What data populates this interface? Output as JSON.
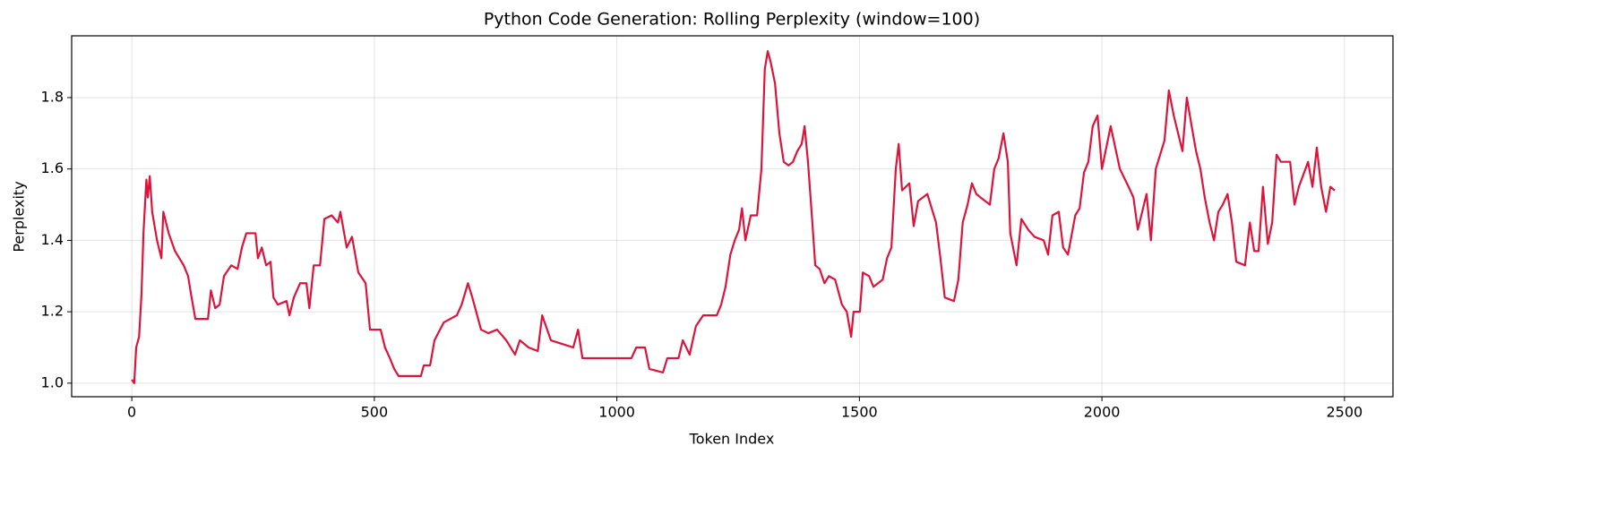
{
  "chart_data": {
    "type": "line",
    "title": "Python Code Generation: Rolling Perplexity (window=100)",
    "x_label": "Token Index",
    "y_label": "Perplexity",
    "color": "#dc143c",
    "grid": true,
    "xlim": [
      -124,
      2600
    ],
    "ylim": [
      0.962,
      1.973
    ],
    "xticks": [
      0,
      500,
      1000,
      1500,
      2000,
      2500
    ],
    "yticks": [
      {
        "value": 1,
        "label": "1.0"
      },
      1.2,
      1.4,
      1.6,
      1.8
    ],
    "x": [
      0,
      5,
      9,
      15,
      20,
      24,
      30,
      33,
      37,
      42,
      52,
      61,
      65,
      76,
      89,
      107,
      116,
      122,
      131,
      144,
      157,
      163,
      172,
      181,
      190,
      205,
      218,
      227,
      236,
      255,
      260,
      268,
      277,
      286,
      292,
      301,
      319,
      325,
      334,
      347,
      360,
      366,
      375,
      388,
      397,
      412,
      425,
      430,
      443,
      454,
      467,
      482,
      491,
      513,
      522,
      532,
      541,
      550,
      578,
      596,
      602,
      615,
      624,
      643,
      670,
      680,
      693,
      702,
      720,
      735,
      753,
      772,
      790,
      800,
      818,
      837,
      846,
      864,
      910,
      920,
      929,
      1030,
      1040,
      1058,
      1067,
      1095,
      1104,
      1127,
      1136,
      1150,
      1163,
      1178,
      1206,
      1215,
      1224,
      1234,
      1243,
      1252,
      1258,
      1265,
      1276,
      1289,
      1298,
      1305,
      1311,
      1317,
      1326,
      1335,
      1344,
      1354,
      1363,
      1372,
      1381,
      1387,
      1394,
      1403,
      1409,
      1418,
      1428,
      1437,
      1450,
      1464,
      1474,
      1483,
      1488,
      1501,
      1507,
      1520,
      1529,
      1548,
      1557,
      1566,
      1575,
      1581,
      1588,
      1603,
      1612,
      1621,
      1640,
      1649,
      1658,
      1667,
      1676,
      1695,
      1704,
      1713,
      1723,
      1732,
      1741,
      1750,
      1769,
      1778,
      1787,
      1797,
      1806,
      1811,
      1824,
      1834,
      1848,
      1861,
      1880,
      1889,
      1898,
      1911,
      1920,
      1930,
      1945,
      1954,
      1963,
      1972,
      1981,
      1991,
      2000,
      2018,
      2037,
      2055,
      2065,
      2074,
      2092,
      2101,
      2111,
      2129,
      2138,
      2148,
      2157,
      2166,
      2175,
      2185,
      2194,
      2203,
      2212,
      2222,
      2231,
      2240,
      2249,
      2259,
      2268,
      2277,
      2295,
      2305,
      2314,
      2323,
      2332,
      2342,
      2351,
      2360,
      2369,
      2388,
      2397,
      2406,
      2425,
      2434,
      2443,
      2452,
      2462,
      2471,
      2480
    ],
    "values": [
      1.01,
      1.0,
      1.1,
      1.13,
      1.25,
      1.42,
      1.57,
      1.52,
      1.58,
      1.48,
      1.4,
      1.35,
      1.48,
      1.42,
      1.37,
      1.33,
      1.3,
      1.25,
      1.18,
      1.18,
      1.18,
      1.26,
      1.21,
      1.22,
      1.3,
      1.33,
      1.32,
      1.38,
      1.42,
      1.42,
      1.35,
      1.38,
      1.33,
      1.34,
      1.24,
      1.22,
      1.23,
      1.19,
      1.24,
      1.28,
      1.28,
      1.21,
      1.33,
      1.33,
      1.46,
      1.47,
      1.45,
      1.48,
      1.38,
      1.41,
      1.31,
      1.28,
      1.15,
      1.15,
      1.1,
      1.07,
      1.04,
      1.02,
      1.02,
      1.02,
      1.05,
      1.05,
      1.12,
      1.17,
      1.19,
      1.22,
      1.28,
      1.24,
      1.15,
      1.14,
      1.15,
      1.12,
      1.08,
      1.12,
      1.1,
      1.09,
      1.19,
      1.12,
      1.1,
      1.15,
      1.07,
      1.07,
      1.1,
      1.1,
      1.04,
      1.03,
      1.07,
      1.07,
      1.12,
      1.08,
      1.16,
      1.19,
      1.19,
      1.22,
      1.27,
      1.36,
      1.4,
      1.43,
      1.49,
      1.4,
      1.47,
      1.47,
      1.6,
      1.88,
      1.93,
      1.9,
      1.84,
      1.7,
      1.62,
      1.61,
      1.62,
      1.65,
      1.67,
      1.72,
      1.62,
      1.45,
      1.33,
      1.32,
      1.28,
      1.3,
      1.29,
      1.22,
      1.2,
      1.13,
      1.2,
      1.2,
      1.31,
      1.3,
      1.27,
      1.29,
      1.35,
      1.38,
      1.6,
      1.67,
      1.54,
      1.56,
      1.44,
      1.51,
      1.53,
      1.49,
      1.45,
      1.35,
      1.24,
      1.23,
      1.29,
      1.45,
      1.5,
      1.56,
      1.53,
      1.52,
      1.5,
      1.6,
      1.63,
      1.7,
      1.62,
      1.42,
      1.33,
      1.46,
      1.43,
      1.41,
      1.4,
      1.36,
      1.47,
      1.48,
      1.38,
      1.36,
      1.47,
      1.49,
      1.59,
      1.62,
      1.72,
      1.75,
      1.6,
      1.72,
      1.6,
      1.55,
      1.52,
      1.43,
      1.53,
      1.4,
      1.6,
      1.68,
      1.82,
      1.75,
      1.7,
      1.65,
      1.8,
      1.72,
      1.65,
      1.6,
      1.52,
      1.45,
      1.4,
      1.48,
      1.5,
      1.53,
      1.45,
      1.34,
      1.33,
      1.45,
      1.37,
      1.37,
      1.55,
      1.39,
      1.45,
      1.64,
      1.62,
      1.62,
      1.5,
      1.55,
      1.62,
      1.55,
      1.66,
      1.55,
      1.48,
      1.55,
      1.54
    ]
  }
}
